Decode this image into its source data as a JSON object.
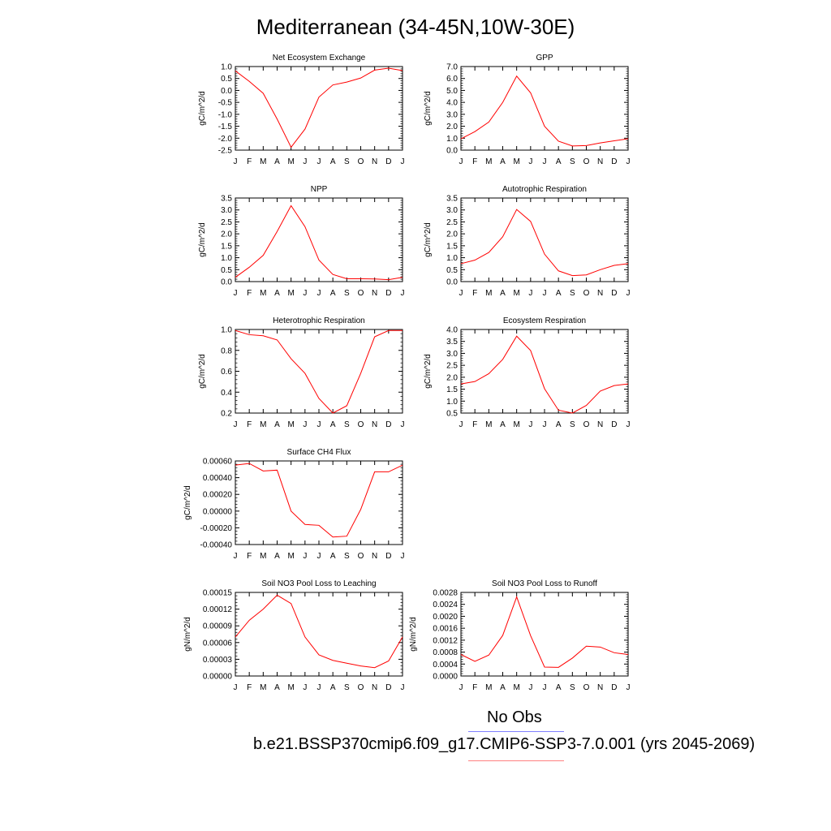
{
  "title": "Mediterranean (34-45N,10W-30E)",
  "legend": {
    "obs_label": "No Obs",
    "obs_color": "#8080ff",
    "model_label": "b.e21.BSSP370cmip6.f09_g17.CMIP6-SSP3-7.0.001 (yrs 2045-2069)",
    "model_color": "#ff8080"
  },
  "line_color": "#ff0000",
  "months": [
    "J",
    "F",
    "M",
    "A",
    "M",
    "J",
    "J",
    "A",
    "S",
    "O",
    "N",
    "D",
    "J"
  ],
  "chart_data": [
    {
      "type": "line",
      "title": "Net Ecosystem Exchange",
      "ylabel": "gC/m^2/d",
      "ylim": [
        -2.5,
        1.0
      ],
      "yticks": [
        "1.0",
        "0.5",
        "0.0",
        "-0.5",
        "-1.0",
        "-1.5",
        "-2.0",
        "-2.5"
      ],
      "yticks_values": [
        1.0,
        0.5,
        0.0,
        -0.5,
        -1.0,
        -1.5,
        -2.0,
        -2.5
      ],
      "values": [
        0.82,
        0.38,
        -0.12,
        -1.2,
        -2.38,
        -1.62,
        -0.28,
        0.23,
        0.35,
        0.52,
        0.85,
        0.93,
        0.83
      ]
    },
    {
      "type": "line",
      "title": "GPP",
      "ylabel": "gC/m^2/d",
      "ylim": [
        0.0,
        7.0
      ],
      "yticks": [
        "7.0",
        "6.0",
        "5.0",
        "4.0",
        "3.0",
        "2.0",
        "1.0",
        "0.0"
      ],
      "yticks_values": [
        7,
        6,
        5,
        4,
        3,
        2,
        1,
        0
      ],
      "values": [
        0.95,
        1.55,
        2.35,
        4.0,
        6.2,
        4.8,
        2.0,
        0.75,
        0.35,
        0.38,
        0.6,
        0.78,
        0.95
      ]
    },
    {
      "type": "line",
      "title": "NPP",
      "ylabel": "gC/m^2/d",
      "ylim": [
        0.0,
        3.5
      ],
      "yticks": [
        "3.5",
        "3.0",
        "2.5",
        "2.0",
        "1.5",
        "1.0",
        "0.5",
        "0.0"
      ],
      "yticks_values": [
        3.5,
        3.0,
        2.5,
        2.0,
        1.5,
        1.0,
        0.5,
        0.0
      ],
      "values": [
        0.18,
        0.6,
        1.1,
        2.1,
        3.18,
        2.3,
        0.9,
        0.3,
        0.12,
        0.12,
        0.11,
        0.08,
        0.18
      ]
    },
    {
      "type": "line",
      "title": "Autotrophic Respiration",
      "ylabel": "gC/m^2/d",
      "ylim": [
        0.0,
        3.5
      ],
      "yticks": [
        "3.5",
        "3.0",
        "2.5",
        "2.0",
        "1.5",
        "1.0",
        "0.5",
        "0.0"
      ],
      "yticks_values": [
        3.5,
        3.0,
        2.5,
        2.0,
        1.5,
        1.0,
        0.5,
        0.0
      ],
      "values": [
        0.75,
        0.9,
        1.22,
        1.88,
        3.02,
        2.52,
        1.15,
        0.45,
        0.25,
        0.28,
        0.5,
        0.68,
        0.75
      ]
    },
    {
      "type": "line",
      "title": "Heterotrophic Respiration",
      "ylabel": "gC/m^2/d",
      "ylim": [
        0.2,
        1.0
      ],
      "yticks": [
        "1.0",
        "0.8",
        "0.6",
        "0.4",
        "0.2"
      ],
      "yticks_values": [
        1.0,
        0.8,
        0.6,
        0.4,
        0.2
      ],
      "values": [
        0.99,
        0.95,
        0.94,
        0.9,
        0.72,
        0.58,
        0.34,
        0.2,
        0.27,
        0.58,
        0.93,
        0.99,
        0.99
      ]
    },
    {
      "type": "line",
      "title": "Ecosystem Respiration",
      "ylabel": "gC/m^2/d",
      "ylim": [
        0.5,
        4.0
      ],
      "yticks": [
        "4.0",
        "3.5",
        "3.0",
        "2.5",
        "2.0",
        "1.5",
        "1.0",
        "0.5"
      ],
      "yticks_values": [
        4.0,
        3.5,
        3.0,
        2.5,
        2.0,
        1.5,
        1.0,
        0.5
      ],
      "values": [
        1.72,
        1.82,
        2.15,
        2.75,
        3.72,
        3.12,
        1.52,
        0.62,
        0.5,
        0.82,
        1.42,
        1.65,
        1.72
      ]
    },
    {
      "type": "line",
      "title": "Surface CH4 Flux",
      "ylabel": "gC/m^2/d",
      "ylim": [
        -0.0004,
        0.0006
      ],
      "yticks": [
        "0.00060",
        "0.00040",
        "0.00020",
        "0.00000",
        "-0.00020",
        "-0.00040"
      ],
      "yticks_values": [
        0.0006,
        0.0004,
        0.0002,
        0.0,
        -0.0002,
        -0.0004
      ],
      "values": [
        0.00055,
        0.00057,
        0.00048,
        0.00049,
        0.0,
        -0.00016,
        -0.00017,
        -0.00031,
        -0.0003,
        2e-05,
        0.00047,
        0.00047,
        0.00055
      ]
    },
    {
      "type": "line",
      "title": "Soil NO3 Pool Loss to Leaching",
      "ylabel": "gN/m^2/d",
      "ylim": [
        0.0,
        0.00015
      ],
      "yticks": [
        "0.00015",
        "0.00012",
        "0.00009",
        "0.00006",
        "0.00003",
        "0.00000"
      ],
      "yticks_values": [
        0.00015,
        0.00012,
        9e-05,
        6e-05,
        3e-05,
        0.0
      ],
      "values": [
        7e-05,
        0.0001,
        0.00012,
        0.000145,
        0.00013,
        7e-05,
        3.8e-05,
        2.8e-05,
        2.3e-05,
        1.8e-05,
        1.5e-05,
        2.7e-05,
        7e-05
      ]
    },
    {
      "type": "line",
      "title": "Soil NO3 Pool Loss to Runoff",
      "ylabel": "gN/m^2/d",
      "ylim": [
        0.0,
        0.0028
      ],
      "yticks": [
        "0.0028",
        "0.0024",
        "0.0020",
        "0.0016",
        "0.0012",
        "0.0008",
        "0.0004",
        "0.0000"
      ],
      "yticks_values": [
        0.0028,
        0.0024,
        0.002,
        0.0016,
        0.0012,
        0.0008,
        0.0004,
        0.0
      ],
      "values": [
        0.00072,
        0.00049,
        0.0007,
        0.00136,
        0.00265,
        0.00135,
        0.0003,
        0.00029,
        0.0006,
        0.001,
        0.00097,
        0.00078,
        0.00072
      ]
    }
  ]
}
